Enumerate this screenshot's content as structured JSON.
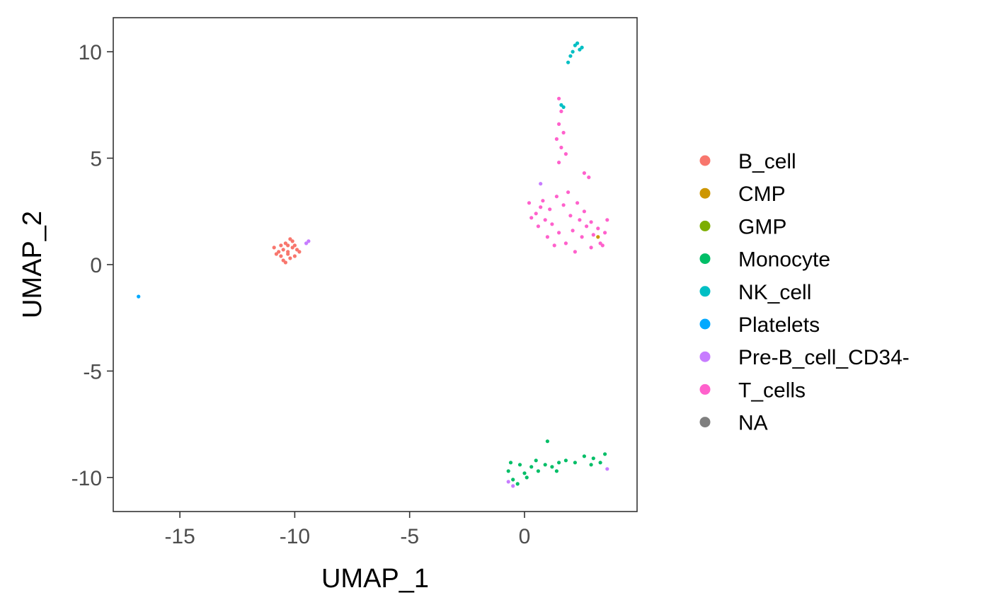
{
  "chart_data": {
    "type": "scatter",
    "title": "",
    "xlabel": "UMAP_1",
    "ylabel": "UMAP_2",
    "xlim": [
      -17.9,
      4.9
    ],
    "ylim": [
      -11.6,
      11.6
    ],
    "x_ticks": [
      {
        "value": -15,
        "label": "-15"
      },
      {
        "value": -10,
        "label": "-10"
      },
      {
        "value": -5,
        "label": "-5"
      },
      {
        "value": 0,
        "label": "0"
      }
    ],
    "y_ticks": [
      {
        "value": -10,
        "label": "-10"
      },
      {
        "value": -5,
        "label": "-5"
      },
      {
        "value": 0,
        "label": "0"
      },
      {
        "value": 5,
        "label": "5"
      },
      {
        "value": 10,
        "label": "10"
      }
    ],
    "grid": false,
    "legend_position": "right",
    "series": [
      {
        "name": "B_cell",
        "color": "#F8766D",
        "points": [
          [
            -10.5,
            0.7
          ],
          [
            -10.3,
            0.5
          ],
          [
            -10.1,
            0.8
          ],
          [
            -10.7,
            0.6
          ],
          [
            -10.4,
            1.0
          ],
          [
            -10.0,
            0.4
          ],
          [
            -10.6,
            0.9
          ],
          [
            -10.2,
            0.3
          ],
          [
            -9.9,
            0.7
          ],
          [
            -10.8,
            0.5
          ],
          [
            -10.3,
            0.9
          ],
          [
            -10.5,
            0.2
          ],
          [
            -10.1,
            1.1
          ],
          [
            -10.6,
            0.4
          ],
          [
            -9.8,
            0.6
          ],
          [
            -10.4,
            0.1
          ],
          [
            -10.9,
            0.8
          ],
          [
            -10.2,
            1.2
          ],
          [
            -10.0,
            0.9
          ],
          [
            -10.3,
            0.6
          ]
        ]
      },
      {
        "name": "CMP",
        "color": "#CD9600",
        "points": [
          [
            3.2,
            1.3
          ]
        ]
      },
      {
        "name": "GMP",
        "color": "#7CAE00",
        "points": []
      },
      {
        "name": "Monocyte",
        "color": "#00BE67",
        "points": [
          [
            -0.7,
            -9.7
          ],
          [
            -0.5,
            -10.1
          ],
          [
            -0.2,
            -9.4
          ],
          [
            0.0,
            -9.8
          ],
          [
            0.3,
            -9.5
          ],
          [
            0.6,
            -9.7
          ],
          [
            0.9,
            -9.4
          ],
          [
            1.2,
            -9.5
          ],
          [
            1.5,
            -9.3
          ],
          [
            1.8,
            -9.2
          ],
          [
            2.2,
            -9.3
          ],
          [
            2.6,
            -9.0
          ],
          [
            3.0,
            -9.1
          ],
          [
            3.3,
            -9.3
          ],
          [
            3.5,
            -8.9
          ],
          [
            1.0,
            -8.3
          ],
          [
            -0.3,
            -10.3
          ],
          [
            0.1,
            -10.0
          ],
          [
            0.5,
            -9.2
          ],
          [
            2.9,
            -9.4
          ],
          [
            1.4,
            -9.7
          ],
          [
            -0.6,
            -9.3
          ]
        ]
      },
      {
        "name": "NK_cell",
        "color": "#00BFC4",
        "points": [
          [
            2.2,
            10.3
          ],
          [
            2.4,
            10.1
          ],
          [
            2.1,
            10.0
          ],
          [
            2.3,
            10.4
          ],
          [
            2.5,
            10.2
          ],
          [
            2.0,
            9.8
          ],
          [
            1.9,
            9.5
          ],
          [
            1.6,
            7.5
          ],
          [
            1.7,
            7.4
          ]
        ]
      },
      {
        "name": "Platelets",
        "color": "#00A9FF",
        "points": [
          [
            -16.8,
            -1.5
          ]
        ]
      },
      {
        "name": "Pre-B_cell_CD34-",
        "color": "#C77CFF",
        "points": [
          [
            -9.5,
            1.0
          ],
          [
            -9.4,
            1.1
          ],
          [
            0.7,
            3.8
          ],
          [
            -0.7,
            -10.2
          ],
          [
            -0.5,
            -10.4
          ],
          [
            3.6,
            -9.6
          ]
        ]
      },
      {
        "name": "T_cells",
        "color": "#FF61CC",
        "points": [
          [
            1.5,
            7.8
          ],
          [
            1.6,
            7.2
          ],
          [
            1.5,
            6.6
          ],
          [
            1.7,
            6.2
          ],
          [
            1.4,
            5.9
          ],
          [
            1.6,
            5.5
          ],
          [
            1.8,
            5.2
          ],
          [
            1.5,
            4.8
          ],
          [
            2.6,
            4.3
          ],
          [
            2.8,
            4.1
          ],
          [
            0.2,
            2.9
          ],
          [
            0.5,
            2.4
          ],
          [
            0.8,
            3.0
          ],
          [
            1.1,
            2.6
          ],
          [
            1.4,
            3.2
          ],
          [
            1.7,
            2.8
          ],
          [
            2.0,
            2.3
          ],
          [
            2.3,
            2.9
          ],
          [
            2.6,
            2.5
          ],
          [
            2.9,
            2.0
          ],
          [
            3.2,
            1.7
          ],
          [
            3.5,
            1.5
          ],
          [
            3.6,
            2.1
          ],
          [
            3.3,
            1.0
          ],
          [
            2.9,
            0.8
          ],
          [
            2.5,
            1.3
          ],
          [
            2.1,
            1.6
          ],
          [
            1.8,
            1.0
          ],
          [
            1.5,
            1.5
          ],
          [
            1.2,
            1.9
          ],
          [
            0.9,
            2.1
          ],
          [
            0.6,
            1.8
          ],
          [
            0.3,
            2.2
          ],
          [
            2.2,
            0.6
          ],
          [
            2.7,
            1.8
          ],
          [
            1.3,
            0.9
          ],
          [
            3.0,
            1.4
          ],
          [
            0.7,
            2.7
          ],
          [
            1.9,
            3.4
          ],
          [
            2.4,
            2.1
          ],
          [
            3.4,
            0.9
          ],
          [
            1.0,
            1.3
          ]
        ]
      },
      {
        "name": "NA",
        "color": "#7F7F7F",
        "points": []
      }
    ]
  }
}
